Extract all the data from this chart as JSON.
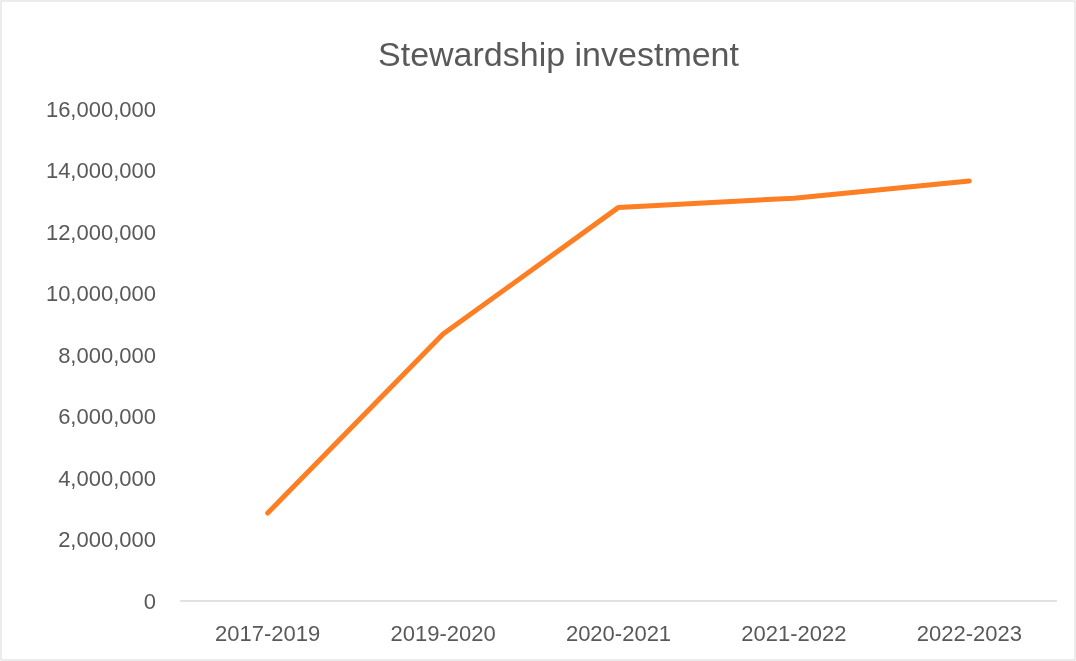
{
  "chart_data": {
    "type": "line",
    "title": "Stewardship investment",
    "categories": [
      "2017-2019",
      "2019-2020",
      "2020-2021",
      "2021-2022",
      "2022-2023"
    ],
    "series": [
      {
        "color": "#fd7e23",
        "values": [
          2860000,
          8680000,
          12800000,
          13100000,
          13660000
        ]
      }
    ],
    "ylim": [
      0,
      16000000
    ],
    "yticks": [
      {
        "value": 0,
        "label": "0"
      },
      {
        "value": 2000000,
        "label": "2,000,000"
      },
      {
        "value": 4000000,
        "label": "4,000,000"
      },
      {
        "value": 6000000,
        "label": "6,000,000"
      },
      {
        "value": 8000000,
        "label": "8,000,000"
      },
      {
        "value": 10000000,
        "label": "10,000,000"
      },
      {
        "value": 12000000,
        "label": "12,000,000"
      },
      {
        "value": 14000000,
        "label": "14,000,000"
      },
      {
        "value": 16000000,
        "label": "16,000,000"
      }
    ],
    "grid": false,
    "marker": "none",
    "line_style": "solid"
  }
}
